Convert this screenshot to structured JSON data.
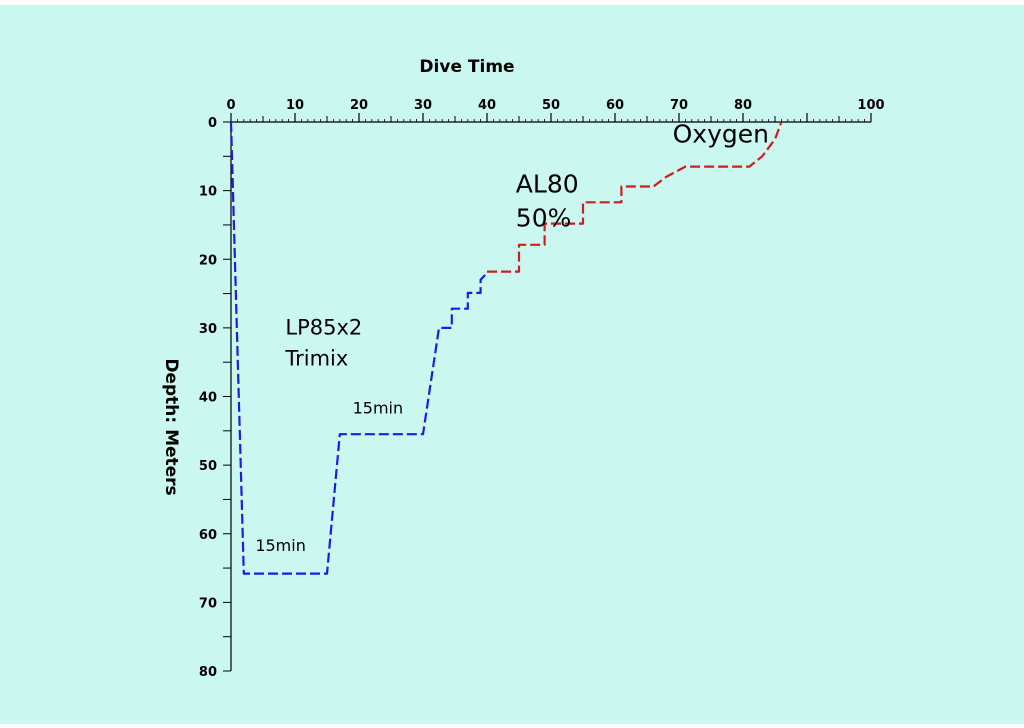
{
  "chart_data": {
    "type": "line",
    "title": "",
    "xlabel": "Dive Time",
    "ylabel": "Depth: Meters",
    "xlim": [
      0,
      100
    ],
    "ylim": [
      0,
      80
    ],
    "x_ticks": [
      0,
      10,
      20,
      30,
      40,
      50,
      60,
      70,
      80,
      90,
      100
    ],
    "x_tick_labels": [
      "0",
      "10",
      "20",
      "30",
      "40",
      "50",
      "60",
      "70",
      "80",
      "",
      "100"
    ],
    "y_ticks": [
      0,
      10,
      20,
      30,
      40,
      50,
      60,
      70,
      80
    ],
    "y_tick_labels": [
      "0",
      "10",
      "20",
      "30",
      "40",
      "50",
      "60",
      "70",
      "80"
    ],
    "x_minor_step": 5,
    "y_minor_step": 5,
    "y_inverted": true,
    "x_axis_position": "top",
    "background_color": "#cbf7f1",
    "series": [
      {
        "color": "#1c1ce6",
        "style": "dashed",
        "points": [
          [
            0,
            0
          ],
          [
            2,
            65.8
          ],
          [
            15,
            65.8
          ],
          [
            17,
            45.5
          ],
          [
            30,
            45.5
          ],
          [
            32.5,
            30
          ],
          [
            34.5,
            30
          ],
          [
            34.5,
            27.2
          ],
          [
            37,
            27.2
          ],
          [
            37,
            24.9
          ],
          [
            39,
            24.9
          ],
          [
            39,
            23
          ],
          [
            40,
            22
          ]
        ]
      },
      {
        "color": "#d01c1c",
        "style": "dashed",
        "points": [
          [
            40,
            21.8
          ],
          [
            45,
            21.8
          ],
          [
            45,
            17.9
          ],
          [
            49,
            17.9
          ],
          [
            49,
            14.8
          ],
          [
            55,
            14.8
          ],
          [
            55,
            11.7
          ],
          [
            61,
            11.7
          ],
          [
            61,
            9.4
          ],
          [
            66,
            9.4
          ],
          [
            68,
            8
          ],
          [
            71,
            6.5
          ],
          [
            81,
            6.5
          ],
          [
            83,
            5
          ],
          [
            85,
            2.5
          ],
          [
            86,
            0
          ]
        ]
      }
    ],
    "annotations": [
      {
        "text": "Oxygen",
        "x": 69,
        "y": 3,
        "size": "large"
      },
      {
        "text": "AL80",
        "x": 44.5,
        "y": 10.3,
        "size": "large"
      },
      {
        "text": "50%",
        "x": 44.5,
        "y": 15.2,
        "size": "large"
      },
      {
        "text": "LP85x2",
        "x": 8.5,
        "y": 31,
        "size": "medium"
      },
      {
        "text": "Trimix",
        "x": 8.5,
        "y": 35.5,
        "size": "medium"
      },
      {
        "text": "15min",
        "x": 19,
        "y": 42.5,
        "size": "small"
      },
      {
        "text": "15min",
        "x": 3.8,
        "y": 62.5,
        "size": "small"
      }
    ]
  }
}
